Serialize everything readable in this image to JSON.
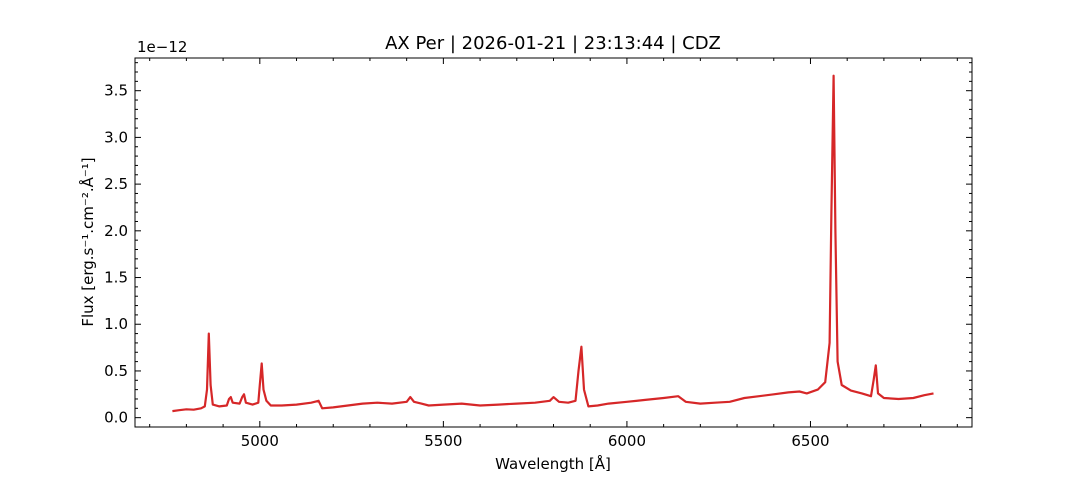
{
  "chart_data": {
    "type": "line",
    "title": "AX Per | 2026-01-21 | 23:13:44 | CDZ",
    "xlabel": "Wavelength [Å]",
    "ylabel": "Flux [erg.s⁻¹.cm⁻².Å⁻¹]",
    "y_offset_text": "1e−12",
    "xlim": [
      4660,
      6940
    ],
    "ylim": [
      -0.1,
      3.85
    ],
    "x_ticks": [
      {
        "value": 5000,
        "label": "5000"
      },
      {
        "value": 5500,
        "label": "5500"
      },
      {
        "value": 6000,
        "label": "6000"
      },
      {
        "value": 6500,
        "label": "6500"
      }
    ],
    "y_ticks": [
      {
        "value": 0.0,
        "label": "0.0"
      },
      {
        "value": 0.5,
        "label": "0.5"
      },
      {
        "value": 1.0,
        "label": "1.0"
      },
      {
        "value": 1.5,
        "label": "1.5"
      },
      {
        "value": 2.0,
        "label": "2.0"
      },
      {
        "value": 2.5,
        "label": "2.5"
      },
      {
        "value": 3.0,
        "label": "3.0"
      },
      {
        "value": 3.5,
        "label": "3.5"
      }
    ],
    "grid": false,
    "series_color": "#d62728",
    "series": [
      {
        "points": [
          [
            4762,
            0.07
          ],
          [
            4780,
            0.08
          ],
          [
            4800,
            0.09
          ],
          [
            4820,
            0.085
          ],
          [
            4840,
            0.1
          ],
          [
            4850,
            0.12
          ],
          [
            4856,
            0.3
          ],
          [
            4861,
            0.9
          ],
          [
            4866,
            0.35
          ],
          [
            4872,
            0.14
          ],
          [
            4890,
            0.12
          ],
          [
            4910,
            0.13
          ],
          [
            4916,
            0.2
          ],
          [
            4921,
            0.22
          ],
          [
            4926,
            0.16
          ],
          [
            4945,
            0.15
          ],
          [
            4952,
            0.22
          ],
          [
            4957,
            0.25
          ],
          [
            4962,
            0.16
          ],
          [
            4980,
            0.14
          ],
          [
            4996,
            0.16
          ],
          [
            5000,
            0.35
          ],
          [
            5005,
            0.58
          ],
          [
            5010,
            0.3
          ],
          [
            5018,
            0.18
          ],
          [
            5030,
            0.13
          ],
          [
            5060,
            0.13
          ],
          [
            5100,
            0.14
          ],
          [
            5140,
            0.16
          ],
          [
            5160,
            0.18
          ],
          [
            5170,
            0.1
          ],
          [
            5200,
            0.11
          ],
          [
            5240,
            0.13
          ],
          [
            5280,
            0.15
          ],
          [
            5320,
            0.16
          ],
          [
            5360,
            0.15
          ],
          [
            5400,
            0.17
          ],
          [
            5410,
            0.22
          ],
          [
            5420,
            0.17
          ],
          [
            5440,
            0.15
          ],
          [
            5460,
            0.13
          ],
          [
            5500,
            0.14
          ],
          [
            5550,
            0.15
          ],
          [
            5600,
            0.13
          ],
          [
            5650,
            0.14
          ],
          [
            5700,
            0.15
          ],
          [
            5750,
            0.16
          ],
          [
            5790,
            0.18
          ],
          [
            5800,
            0.22
          ],
          [
            5815,
            0.17
          ],
          [
            5840,
            0.16
          ],
          [
            5860,
            0.18
          ],
          [
            5868,
            0.5
          ],
          [
            5876,
            0.76
          ],
          [
            5883,
            0.3
          ],
          [
            5895,
            0.12
          ],
          [
            5920,
            0.13
          ],
          [
            5950,
            0.15
          ],
          [
            6000,
            0.17
          ],
          [
            6050,
            0.19
          ],
          [
            6100,
            0.21
          ],
          [
            6140,
            0.23
          ],
          [
            6160,
            0.17
          ],
          [
            6200,
            0.15
          ],
          [
            6240,
            0.16
          ],
          [
            6280,
            0.17
          ],
          [
            6320,
            0.21
          ],
          [
            6360,
            0.23
          ],
          [
            6400,
            0.25
          ],
          [
            6440,
            0.27
          ],
          [
            6470,
            0.28
          ],
          [
            6490,
            0.26
          ],
          [
            6520,
            0.3
          ],
          [
            6540,
            0.38
          ],
          [
            6552,
            0.8
          ],
          [
            6557,
            2.2
          ],
          [
            6563,
            3.66
          ],
          [
            6568,
            2.0
          ],
          [
            6574,
            0.6
          ],
          [
            6585,
            0.35
          ],
          [
            6610,
            0.29
          ],
          [
            6640,
            0.26
          ],
          [
            6665,
            0.23
          ],
          [
            6672,
            0.4
          ],
          [
            6678,
            0.56
          ],
          [
            6684,
            0.26
          ],
          [
            6700,
            0.21
          ],
          [
            6740,
            0.2
          ],
          [
            6780,
            0.21
          ],
          [
            6810,
            0.24
          ],
          [
            6835,
            0.26
          ]
        ]
      }
    ]
  }
}
